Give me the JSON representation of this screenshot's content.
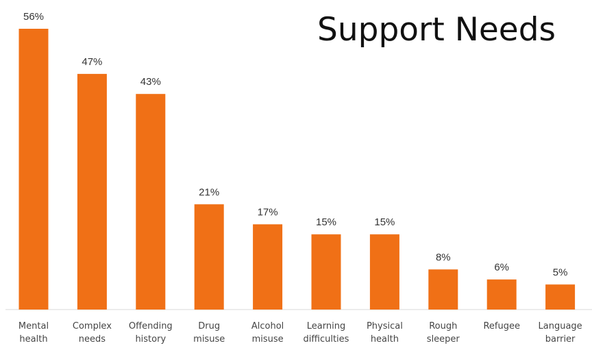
{
  "chart_data": {
    "type": "bar",
    "title": "Support Needs",
    "xlabel": "",
    "ylabel": "",
    "ylim": [
      0,
      56
    ],
    "grid": false,
    "legend": "none",
    "categories": [
      [
        "Mental",
        "health"
      ],
      [
        "Complex",
        "needs"
      ],
      [
        "Offending",
        "history"
      ],
      [
        "Drug",
        "misuse"
      ],
      [
        "Alcohol",
        "misuse"
      ],
      [
        "Learning",
        "difficulties"
      ],
      [
        "Physical",
        "health"
      ],
      [
        "Rough",
        "sleeper"
      ],
      [
        "Refugee"
      ],
      [
        "Language",
        "barrier"
      ]
    ],
    "values": [
      56,
      47,
      43,
      21,
      17,
      15,
      15,
      8,
      6,
      5
    ],
    "data_labels": [
      "56%",
      "47%",
      "43%",
      "21%",
      "17%",
      "15%",
      "15%",
      "8%",
      "6%",
      "5%"
    ],
    "colors": {
      "bar": "#f07016",
      "axis": "#d9d9d9"
    }
  }
}
